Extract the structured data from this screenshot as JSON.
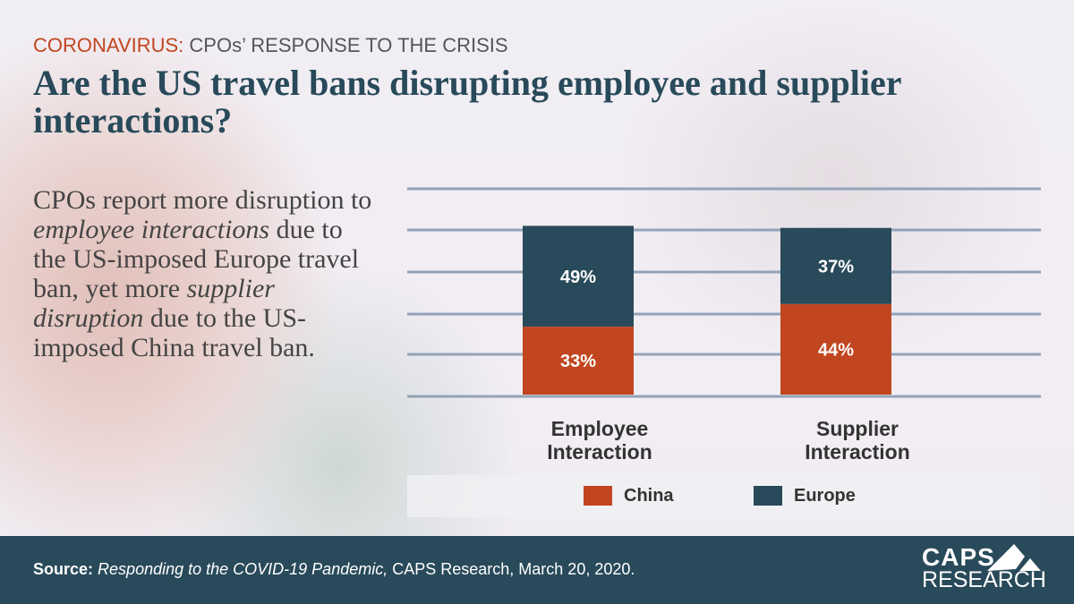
{
  "header": {
    "kicker_highlight": "CORONAVIRUS:",
    "kicker_rest": " CPOs’ RESPONSE TO THE CRISIS",
    "title": "Are the US travel bans disrupting employee and supplier interactions?"
  },
  "body_text": [
    {
      "t": "CPOs report more disruption to ",
      "i": false
    },
    {
      "t": "employee interactions",
      "i": true
    },
    {
      "t": " due to the US-imposed Europe travel ban, yet more ",
      "i": false
    },
    {
      "t": "supplier disruption",
      "i": true
    },
    {
      "t": " due to the US-imposed China travel ban.",
      "i": false
    }
  ],
  "chart_data": {
    "type": "bar",
    "stacked": true,
    "categories": [
      "Employee Interaction",
      "Supplier Interaction"
    ],
    "series": [
      {
        "name": "China",
        "color": "#c1461f",
        "values": [
          33,
          44
        ],
        "labels": [
          "33%",
          "44%"
        ]
      },
      {
        "name": "Europe",
        "color": "#284a5a",
        "values": [
          49,
          37
        ],
        "labels": [
          "49%",
          "37%"
        ]
      }
    ],
    "grid": true,
    "legend": "bottom",
    "unit": "%"
  },
  "footer": {
    "source_label": "Source:",
    "source_title": "Responding to the COVID-19 Pandemic,",
    "source_rest": " CAPS Research, March 20, 2020.",
    "logo_line1": "CAPS",
    "logo_line2": "RESEARCH"
  }
}
